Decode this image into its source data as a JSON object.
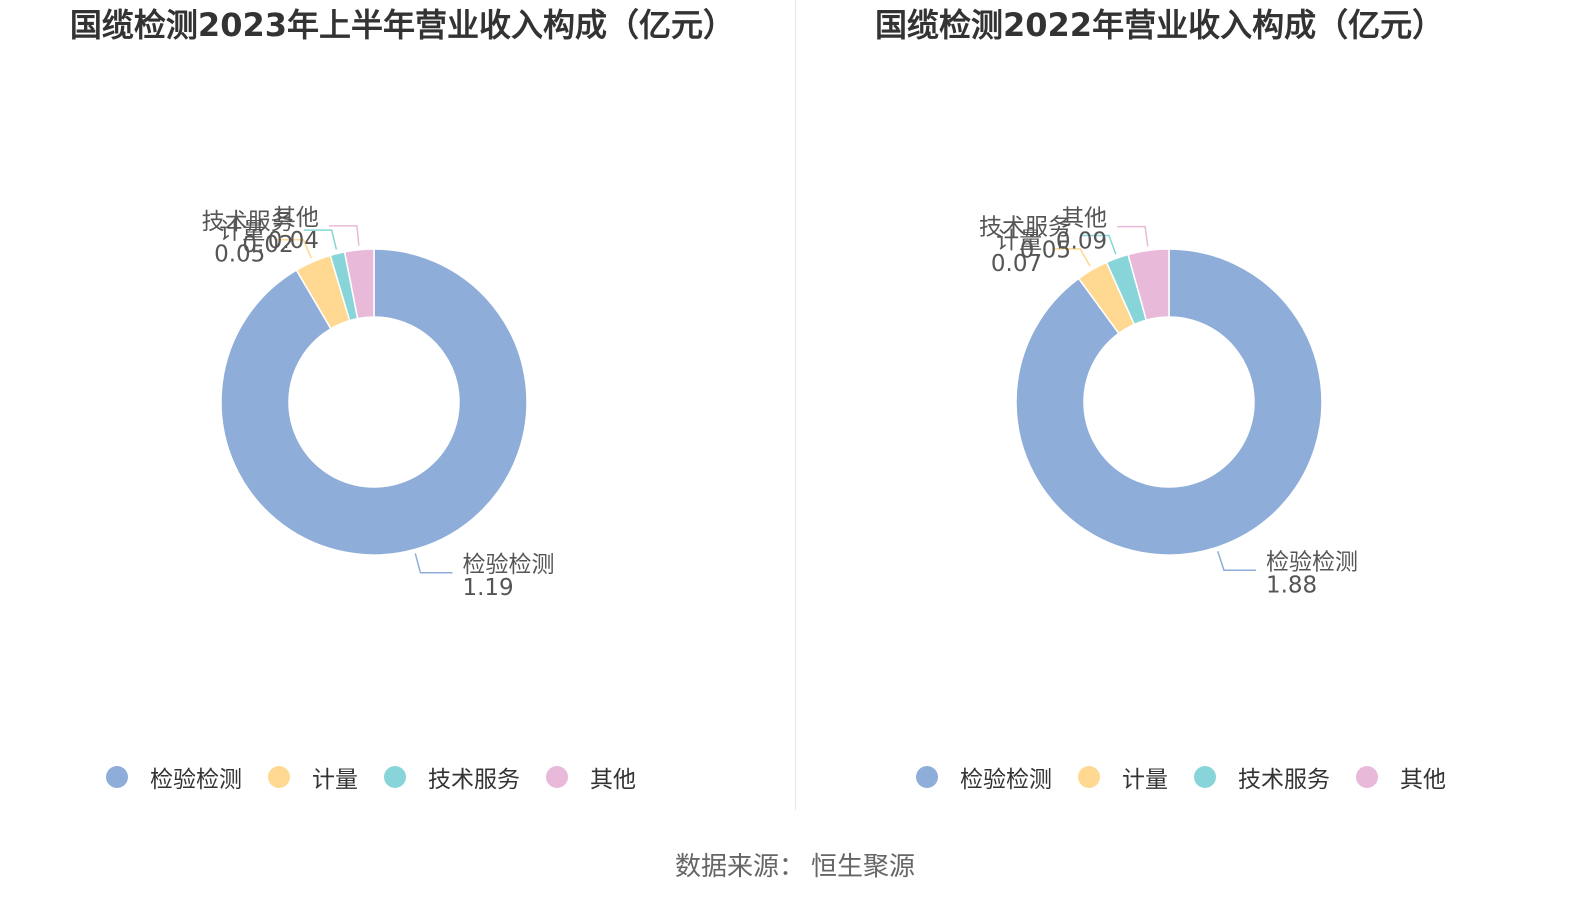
{
  "colors": [
    "#8fadd9",
    "#ffd892",
    "#87d5d8",
    "#e8b9d9"
  ],
  "chart_data": [
    {
      "type": "pie",
      "title": "国缆检测2023年上半年营业收入构成（亿元）",
      "categories": [
        "检验检测",
        "计量",
        "技术服务",
        "其他"
      ],
      "values": [
        1.19,
        0.05,
        0.02,
        0.04
      ],
      "value_labels": [
        "1.19",
        "0.05",
        "0.02",
        "0.04"
      ],
      "legend": "bottom"
    },
    {
      "type": "pie",
      "title": "国缆检测2022年营业收入构成（亿元）",
      "categories": [
        "检验检测",
        "计量",
        "技术服务",
        "其他"
      ],
      "values": [
        1.88,
        0.07,
        0.05,
        0.09
      ],
      "value_labels": [
        "1.88",
        "0.07",
        "0.05",
        "0.09"
      ],
      "legend": "bottom"
    }
  ],
  "source": {
    "label": "数据来源：",
    "value": "恒生聚源"
  }
}
